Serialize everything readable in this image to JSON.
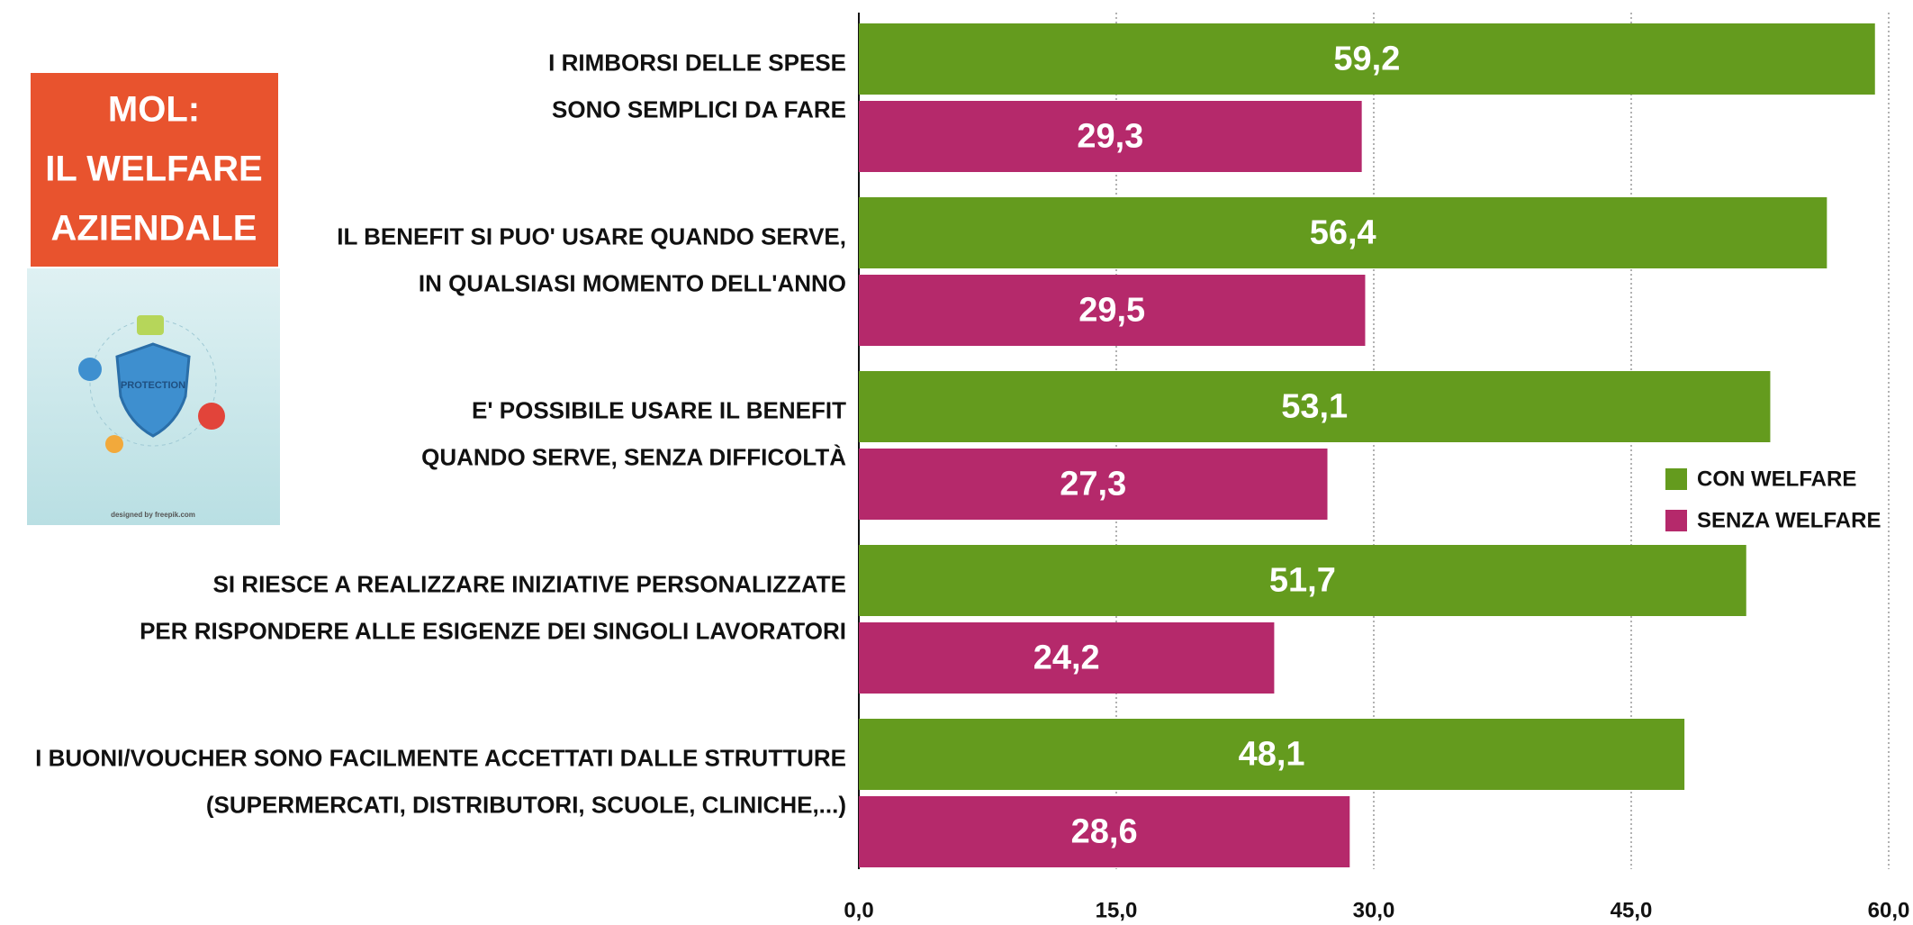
{
  "sidebar": {
    "title_lines": [
      "MOL:",
      "IL WELFARE",
      "AZIENDALE"
    ],
    "image_label": "PROTECTION",
    "credit": "designed by freepik.com"
  },
  "chart_data": {
    "type": "hbar",
    "categories": [
      "I RIMBORSI DELLE SPESE\nSONO SEMPLICI DA FARE",
      "IL BENEFIT SI PUO' USARE QUANDO SERVE,\nIN QUALSIASI MOMENTO DELL'ANNO",
      "E' POSSIBILE USARE IL BENEFIT\nQUANDO SERVE, SENZA DIFFICOLTÀ",
      "SI RIESCE A REALIZZARE INIZIATIVE PERSONALIZZATE\nPER RISPONDERE ALLE ESIGENZE DEI SINGOLI LAVORATORI",
      "I BUONI/VOUCHER SONO FACILMENTE ACCETTATI DALLE STRUTTURE\n(SUPERMERCATI, DISTRIBUTORI, SCUOLE, CLINICHE,...)"
    ],
    "series": [
      {
        "name": "CON WELFARE",
        "color": "#649b1e",
        "values": [
          59.2,
          56.4,
          53.1,
          51.7,
          48.1
        ],
        "value_labels": [
          "59,2",
          "56,4",
          "53,1",
          "51,7",
          "48,1"
        ]
      },
      {
        "name": "SENZA WELFARE",
        "color": "#b5296b",
        "values": [
          29.3,
          29.5,
          27.3,
          24.2,
          28.6
        ],
        "value_labels": [
          "29,3",
          "29,5",
          "27,3",
          "24,2",
          "28,6"
        ]
      }
    ],
    "xlim": [
      0,
      60
    ],
    "xticks": [
      {
        "value": 0,
        "label": "0,0"
      },
      {
        "value": 15,
        "label": "15,0"
      },
      {
        "value": 30,
        "label": "30,0"
      },
      {
        "value": 45,
        "label": "45,0"
      },
      {
        "value": 60,
        "label": "60,0"
      }
    ],
    "grid": true,
    "legend": "right"
  }
}
